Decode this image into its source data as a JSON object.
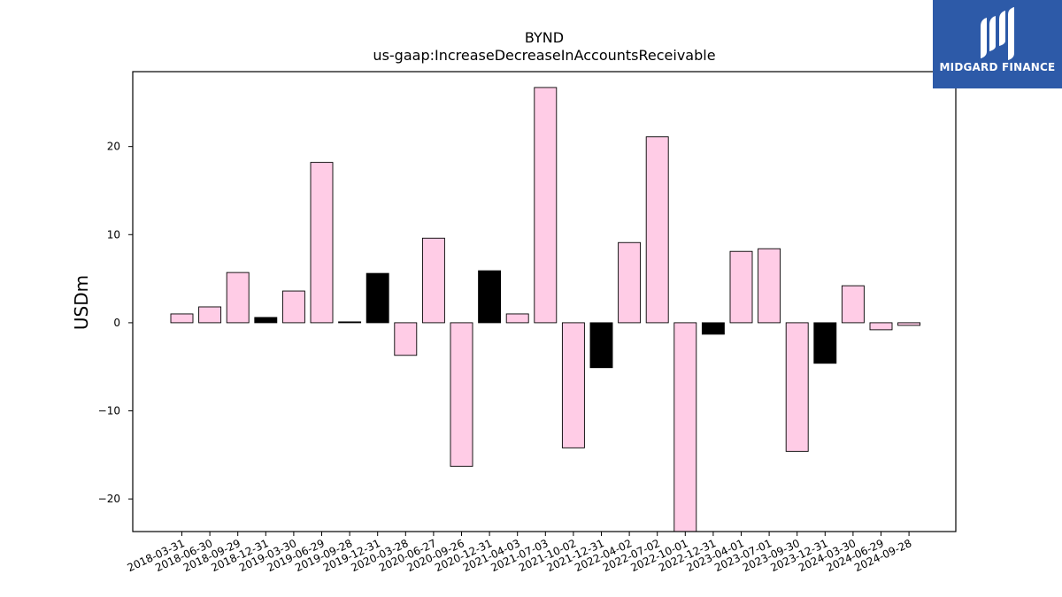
{
  "chart_data": {
    "type": "bar",
    "title": "BYND",
    "subtitle": "us-gaap:IncreaseDecreaseInAccountsReceivable",
    "xlabel": "",
    "ylabel": "USDm",
    "ylim": [
      -23.7,
      28.5
    ],
    "yticks": [
      -20,
      -10,
      0,
      10,
      20
    ],
    "ytick_labels": [
      "−20",
      "−10",
      "0",
      "10",
      "20"
    ],
    "grid": false,
    "colors": {
      "pink": "#ffcce6",
      "black": "#000000",
      "edge": "#000000"
    },
    "categories": [
      "2018-03-31",
      "2018-06-30",
      "2018-09-29",
      "2018-12-31",
      "2019-03-30",
      "2019-06-29",
      "2019-09-28",
      "2019-12-31",
      "2020-03-28",
      "2020-06-27",
      "2020-09-26",
      "2020-12-31",
      "2021-04-03",
      "2021-07-03",
      "2021-10-02",
      "2021-12-31",
      "2022-04-02",
      "2022-07-02",
      "2022-10-01",
      "2022-12-31",
      "2023-04-01",
      "2023-07-01",
      "2023-09-30",
      "2023-12-31",
      "2024-03-30",
      "2024-06-29",
      "2024-09-28"
    ],
    "values": [
      1.0,
      1.8,
      5.7,
      0.6,
      3.6,
      18.2,
      0.1,
      5.6,
      -3.7,
      9.6,
      -16.3,
      5.9,
      1.0,
      26.7,
      -14.2,
      -5.1,
      9.1,
      21.1,
      -23.7,
      -1.3,
      8.1,
      8.4,
      -14.6,
      -4.6,
      4.2,
      -0.8,
      -0.3
    ],
    "bar_colors": [
      "pink",
      "pink",
      "pink",
      "black",
      "pink",
      "pink",
      "black",
      "black",
      "pink",
      "pink",
      "pink",
      "black",
      "pink",
      "pink",
      "pink",
      "black",
      "pink",
      "pink",
      "pink",
      "black",
      "pink",
      "pink",
      "pink",
      "black",
      "pink",
      "pink",
      "pink"
    ]
  },
  "logo": {
    "text": "MIDGARD FINANCE",
    "icon": "midgard-logo-icon"
  }
}
